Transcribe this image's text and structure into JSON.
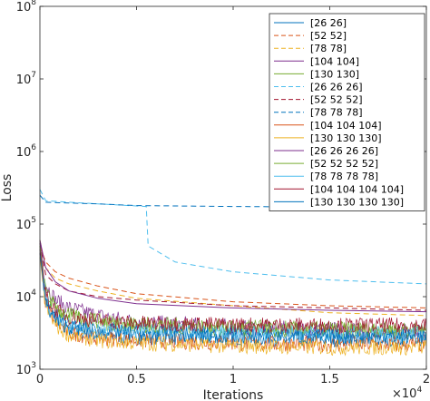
{
  "chart_data": {
    "type": "line",
    "title": "",
    "xlabel": "Iterations",
    "ylabel": "Loss",
    "xlim": [
      0,
      20000
    ],
    "ylim": [
      1000,
      100000000
    ],
    "yscale": "log",
    "grid": false,
    "legend_placement": "top-right",
    "x_ticks": [
      {
        "value": 0,
        "label": "0"
      },
      {
        "value": 5000,
        "label": "0.5"
      },
      {
        "value": 10000,
        "label": "1"
      },
      {
        "value": 15000,
        "label": "1.5"
      },
      {
        "value": 20000,
        "label": "2"
      }
    ],
    "x_multiplier": {
      "base": "×10",
      "exp": "4"
    },
    "y_ticks": [
      {
        "value": 1000,
        "base": "10",
        "exp": "3"
      },
      {
        "value": 10000,
        "base": "10",
        "exp": "4"
      },
      {
        "value": 100000,
        "base": "10",
        "exp": "5"
      },
      {
        "value": 1000000,
        "base": "10",
        "exp": "6"
      },
      {
        "value": 10000000,
        "base": "10",
        "exp": "7"
      },
      {
        "value": 100000000,
        "base": "10",
        "exp": "8"
      }
    ],
    "series": [
      {
        "name": "[26 26]",
        "color": "#0072bd",
        "style": "solid",
        "noisy": true,
        "x": [
          0,
          300,
          800,
          1500,
          3000,
          5000,
          10000,
          15000,
          20000
        ],
        "y": [
          40000,
          9000,
          5000,
          3500,
          3000,
          2800,
          2700,
          2600,
          2600
        ]
      },
      {
        "name": "[52 52]",
        "color": "#d95319",
        "style": "dashed",
        "noisy": false,
        "x": [
          0,
          300,
          800,
          1500,
          3000,
          5000,
          10000,
          15000,
          20000
        ],
        "y": [
          50000,
          30000,
          22000,
          18000,
          14000,
          11000,
          8500,
          7500,
          7000
        ]
      },
      {
        "name": "[78 78]",
        "color": "#edb120",
        "style": "dashed",
        "noisy": false,
        "x": [
          0,
          300,
          800,
          1500,
          3000,
          5000,
          10000,
          15000,
          20000
        ],
        "y": [
          60000,
          25000,
          18000,
          15000,
          12000,
          9500,
          7500,
          6000,
          5500
        ]
      },
      {
        "name": "[104 104]",
        "color": "#7e2f8e",
        "style": "solid",
        "noisy": true,
        "x": [
          0,
          300,
          800,
          1500,
          3000,
          5000,
          10000,
          15000,
          20000
        ],
        "y": [
          55000,
          15000,
          9000,
          7000,
          5500,
          4500,
          3800,
          3500,
          3300
        ]
      },
      {
        "name": "[130 130]",
        "color": "#77ac30",
        "style": "solid",
        "noisy": true,
        "x": [
          0,
          300,
          800,
          1500,
          3000,
          5000,
          10000,
          15000,
          20000
        ],
        "y": [
          50000,
          12000,
          7000,
          5500,
          4500,
          4000,
          3600,
          3400,
          3300
        ]
      },
      {
        "name": "[26 26 26]",
        "color": "#4dbeee",
        "style": "dashed",
        "noisy": false,
        "x": [
          0,
          300,
          1500,
          3000,
          5500,
          5600,
          7000,
          10000,
          15000,
          20000
        ],
        "y": [
          300000,
          210000,
          200000,
          190000,
          175000,
          50000,
          30000,
          22000,
          17000,
          15000
        ]
      },
      {
        "name": "[52 52 52]",
        "color": "#a2142f",
        "style": "dashed",
        "noisy": false,
        "x": [
          0,
          300,
          800,
          1500,
          3000,
          5000,
          10000,
          15000,
          20000
        ],
        "y": [
          55000,
          20000,
          15000,
          12000,
          10000,
          9000,
          7500,
          7000,
          6500
        ]
      },
      {
        "name": "[78 78 78]",
        "color": "#0072bd",
        "style": "dashed",
        "noisy": false,
        "x": [
          0,
          300,
          1500,
          3000,
          5000,
          10000,
          15000,
          20000
        ],
        "y": [
          250000,
          200000,
          195000,
          190000,
          180000,
          175000,
          172000,
          170000
        ]
      },
      {
        "name": "[104 104 104]",
        "color": "#d95319",
        "style": "solid",
        "noisy": true,
        "x": [
          0,
          300,
          800,
          1500,
          3000,
          5000,
          10000,
          15000,
          20000
        ],
        "y": [
          40000,
          8000,
          4500,
          3200,
          2700,
          2500,
          2300,
          2200,
          2200
        ]
      },
      {
        "name": "[130 130 130]",
        "color": "#edb120",
        "style": "solid",
        "noisy": true,
        "x": [
          0,
          300,
          800,
          1500,
          3000,
          5000,
          10000,
          15000,
          20000
        ],
        "y": [
          35000,
          7000,
          4000,
          3000,
          2500,
          2300,
          2100,
          2000,
          2000
        ]
      },
      {
        "name": "[26 26 26 26]",
        "color": "#7e2f8e",
        "style": "solid",
        "noisy": false,
        "x": [
          0,
          300,
          800,
          1500,
          3000,
          5000,
          10000,
          15000,
          20000
        ],
        "y": [
          60000,
          25000,
          16000,
          12000,
          9500,
          8000,
          7000,
          6500,
          6200
        ]
      },
      {
        "name": "[52 52 52 52]",
        "color": "#77ac30",
        "style": "solid",
        "noisy": true,
        "x": [
          0,
          300,
          800,
          1500,
          3000,
          5000,
          10000,
          15000,
          20000
        ],
        "y": [
          50000,
          11000,
          7000,
          5500,
          4700,
          4200,
          3800,
          3600,
          3500
        ]
      },
      {
        "name": "[78 78 78 78]",
        "color": "#4dbeee",
        "style": "solid",
        "noisy": true,
        "x": [
          0,
          300,
          800,
          1500,
          3000,
          5000,
          10000,
          15000,
          20000
        ],
        "y": [
          45000,
          9000,
          5500,
          4200,
          3700,
          3400,
          3200,
          3100,
          3000
        ]
      },
      {
        "name": "[104 104 104 104]",
        "color": "#a2142f",
        "style": "solid",
        "noisy": true,
        "x": [
          0,
          300,
          800,
          1500,
          3000,
          5000,
          10000,
          15000,
          20000
        ],
        "y": [
          45000,
          10000,
          6500,
          5300,
          4700,
          4300,
          4100,
          4000,
          4000
        ]
      },
      {
        "name": "[130 130 130 130]",
        "color": "#0072bd",
        "style": "solid",
        "noisy": true,
        "x": [
          0,
          300,
          800,
          1500,
          3000,
          5000,
          10000,
          15000,
          20000
        ],
        "y": [
          40000,
          8000,
          4800,
          3800,
          3400,
          3100,
          2900,
          2800,
          2800
        ]
      }
    ]
  }
}
